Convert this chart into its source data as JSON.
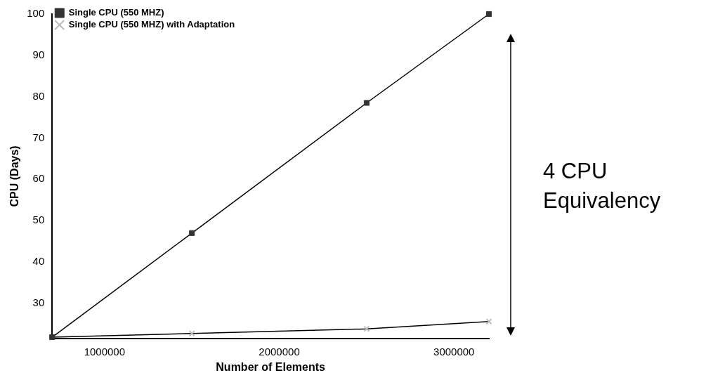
{
  "chart_data": {
    "type": "line",
    "xlabel": "Number of Elements",
    "ylabel": "CPU (Days)",
    "x": [
      700000,
      1500000,
      2500000,
      3200000
    ],
    "series": [
      {
        "name": "Single CPU (550 MHZ)",
        "color": "#000000",
        "values": [
          21.8,
          47,
          78.5,
          100
        ],
        "marker": "square"
      },
      {
        "name": "Single CPU (550 MHZ) with Adaptation",
        "color": "#000000",
        "values": [
          21.8,
          22.7,
          23.8,
          25.6
        ],
        "marker": "cross"
      }
    ],
    "xlim": [
      700000,
      3200000
    ],
    "xticks": [
      1000000,
      2000000,
      3000000
    ],
    "ylim": [
      21.5,
      100
    ],
    "yticks": [
      30,
      40,
      50,
      60,
      70,
      80,
      90,
      100
    ],
    "grid": false,
    "legend": "top left",
    "line_style": "solid",
    "annotations": [
      "4 CPU Equivalency"
    ]
  }
}
